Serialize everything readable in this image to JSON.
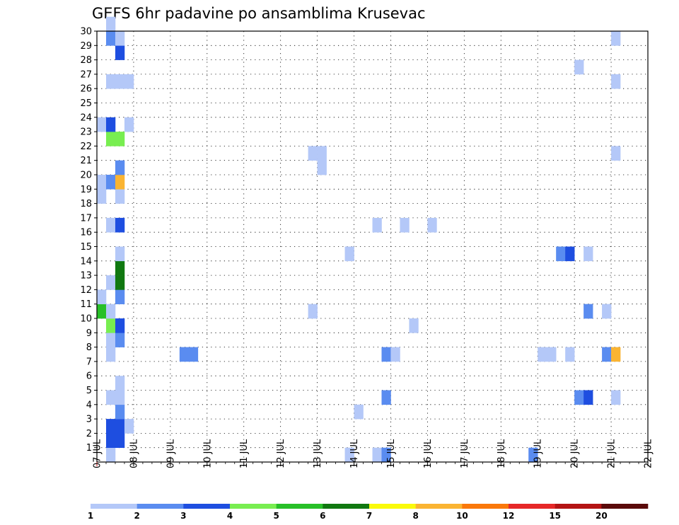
{
  "chart_data": {
    "type": "heatmap",
    "title": "GEFS 6hr padavine po ansamblima Krusevac",
    "xlabel": "",
    "ylabel": "",
    "x_ticks": [
      "07 JUL",
      "08 JUL",
      "09 JUL",
      "10 JUL",
      "11 JUL",
      "12 JUL",
      "13 JUL",
      "14 JUL",
      "15 JUL",
      "16 JUL",
      "17 JUL",
      "18 JUL",
      "19 JUL",
      "20 JUL",
      "21 JUL",
      "22 JUL"
    ],
    "y_ticks": [
      "1",
      "2",
      "3",
      "4",
      "5",
      "6",
      "7",
      "8",
      "9",
      "10",
      "11",
      "12",
      "13",
      "14",
      "15",
      "16",
      "17",
      "18",
      "19",
      "20",
      "21",
      "22",
      "23",
      "24",
      "25",
      "26",
      "27",
      "28",
      "29",
      "30"
    ],
    "xlim": [
      0,
      60
    ],
    "ylim": [
      0,
      30
    ],
    "grid": true,
    "colorbar": {
      "thresholds": [
        "1",
        "2",
        "3",
        "4",
        "5",
        "6",
        "7",
        "8",
        "10",
        "12",
        "15",
        "20"
      ],
      "colors": [
        "#b4c8f8",
        "#5a8cf0",
        "#1e4ee0",
        "#78ee50",
        "#28c028",
        "#107810",
        "#fafa0a",
        "#fab432",
        "#fa780a",
        "#e62828",
        "#b41414",
        "#5a0a0a"
      ]
    },
    "cells": [
      {
        "t": 1,
        "m": 0,
        "c": 1
      },
      {
        "t": 1,
        "m": 30,
        "c": 1
      },
      {
        "t": 1,
        "m": 1,
        "c": 3
      },
      {
        "t": 2,
        "m": 1,
        "c": 3
      },
      {
        "t": 1,
        "m": 2,
        "c": 3
      },
      {
        "t": 2,
        "m": 2,
        "c": 3
      },
      {
        "t": 3,
        "m": 2,
        "c": 1
      },
      {
        "t": 2,
        "m": 3,
        "c": 2
      },
      {
        "t": 1,
        "m": 4,
        "c": 1
      },
      {
        "t": 2,
        "m": 4,
        "c": 1
      },
      {
        "t": 2,
        "m": 5,
        "c": 1
      },
      {
        "t": 1,
        "m": 7,
        "c": 1
      },
      {
        "t": 1,
        "m": 8,
        "c": 1
      },
      {
        "t": 2,
        "m": 8,
        "c": 2
      },
      {
        "t": 1,
        "m": 9,
        "c": 4
      },
      {
        "t": 2,
        "m": 9,
        "c": 3
      },
      {
        "t": 0,
        "m": 10,
        "c": 5
      },
      {
        "t": 1,
        "m": 10,
        "c": 1
      },
      {
        "t": 0,
        "m": 11,
        "c": 1
      },
      {
        "t": 2,
        "m": 11,
        "c": 2
      },
      {
        "t": 1,
        "m": 12,
        "c": 1
      },
      {
        "t": 2,
        "m": 12,
        "c": 6
      },
      {
        "t": 2,
        "m": 13,
        "c": 6
      },
      {
        "t": 2,
        "m": 14,
        "c": 1
      },
      {
        "t": 1,
        "m": 16,
        "c": 1
      },
      {
        "t": 2,
        "m": 16,
        "c": 3
      },
      {
        "t": 0,
        "m": 18,
        "c": 1
      },
      {
        "t": 2,
        "m": 18,
        "c": 1
      },
      {
        "t": 0,
        "m": 19,
        "c": 1
      },
      {
        "t": 1,
        "m": 19,
        "c": 2
      },
      {
        "t": 2,
        "m": 19,
        "c": 8
      },
      {
        "t": 2,
        "m": 20,
        "c": 2
      },
      {
        "t": 1,
        "m": 22,
        "c": 4
      },
      {
        "t": 2,
        "m": 22,
        "c": 4
      },
      {
        "t": 0,
        "m": 23,
        "c": 1
      },
      {
        "t": 1,
        "m": 23,
        "c": 3
      },
      {
        "t": 3,
        "m": 23,
        "c": 1
      },
      {
        "t": 1,
        "m": 26,
        "c": 1
      },
      {
        "t": 2,
        "m": 26,
        "c": 1
      },
      {
        "t": 3,
        "m": 26,
        "c": 1
      },
      {
        "t": 2,
        "m": 28,
        "c": 3
      },
      {
        "t": 1,
        "m": 29,
        "c": 2
      },
      {
        "t": 2,
        "m": 29,
        "c": 1
      },
      {
        "t": 9,
        "m": 7,
        "c": 2
      },
      {
        "t": 10,
        "m": 7,
        "c": 2
      },
      {
        "t": 23,
        "m": 10,
        "c": 1
      },
      {
        "t": 23,
        "m": 21,
        "c": 1
      },
      {
        "t": 24,
        "m": 21,
        "c": 1
      },
      {
        "t": 24,
        "m": 20,
        "c": 1
      },
      {
        "t": 27,
        "m": 14,
        "c": 1
      },
      {
        "t": 27,
        "m": 0,
        "c": 1
      },
      {
        "t": 28,
        "m": 3,
        "c": 1
      },
      {
        "t": 30,
        "m": 0,
        "c": 1
      },
      {
        "t": 31,
        "m": 0,
        "c": 2
      },
      {
        "t": 30,
        "m": 16,
        "c": 1
      },
      {
        "t": 31,
        "m": 4,
        "c": 2
      },
      {
        "t": 31,
        "m": 7,
        "c": 2
      },
      {
        "t": 32,
        "m": 7,
        "c": 1
      },
      {
        "t": 33,
        "m": 16,
        "c": 1
      },
      {
        "t": 34,
        "m": 9,
        "c": 1
      },
      {
        "t": 36,
        "m": 16,
        "c": 1
      },
      {
        "t": 47,
        "m": 0,
        "c": 2
      },
      {
        "t": 48,
        "m": 7,
        "c": 1
      },
      {
        "t": 49,
        "m": 7,
        "c": 1
      },
      {
        "t": 50,
        "m": 14,
        "c": 2
      },
      {
        "t": 51,
        "m": 14,
        "c": 3
      },
      {
        "t": 51,
        "m": 7,
        "c": 1
      },
      {
        "t": 52,
        "m": 27,
        "c": 1
      },
      {
        "t": 52,
        "m": 4,
        "c": 2
      },
      {
        "t": 53,
        "m": 4,
        "c": 3
      },
      {
        "t": 53,
        "m": 14,
        "c": 1
      },
      {
        "t": 53,
        "m": 10,
        "c": 2
      },
      {
        "t": 55,
        "m": 10,
        "c": 1
      },
      {
        "t": 55,
        "m": 7,
        "c": 2
      },
      {
        "t": 56,
        "m": 7,
        "c": 8
      },
      {
        "t": 56,
        "m": 29,
        "c": 1
      },
      {
        "t": 56,
        "m": 26,
        "c": 1
      },
      {
        "t": 56,
        "m": 21,
        "c": 1
      },
      {
        "t": 56,
        "m": 4,
        "c": 1
      }
    ]
  }
}
